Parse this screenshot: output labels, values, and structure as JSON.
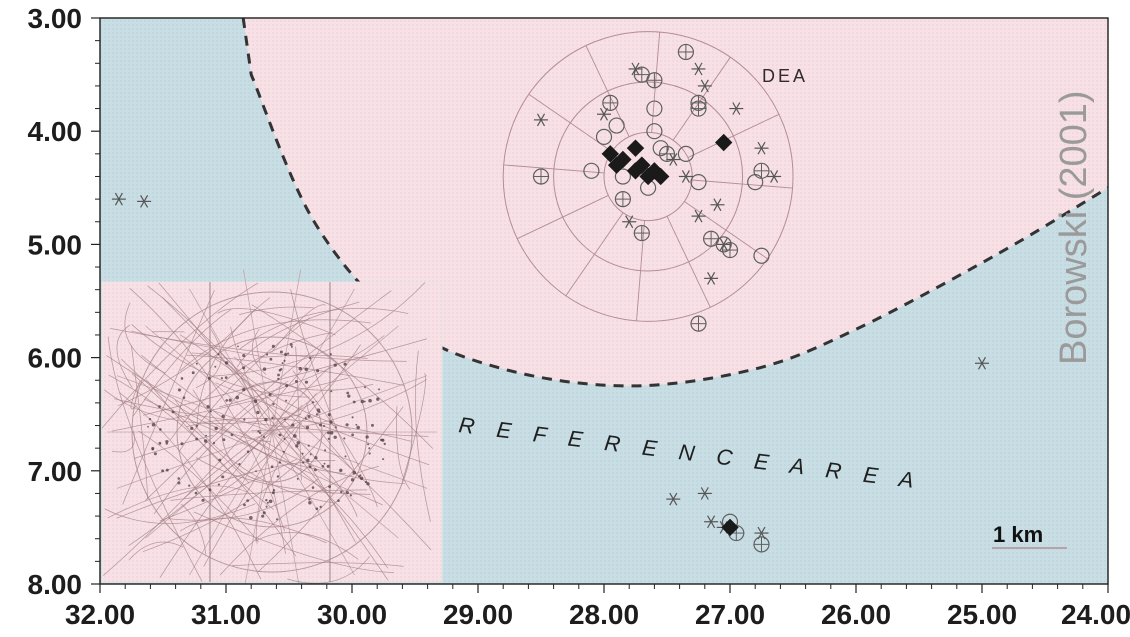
{
  "figure": {
    "dea_label": "DEA",
    "reference_area_label": "R E F E R E N C E   A R E A",
    "scale_bar_label": "1 km",
    "attribution": "Borowski (2001)"
  },
  "axes": {
    "x_ticks": [
      "32.00",
      "31.00",
      "30.00",
      "29.00",
      "28.00",
      "27.00",
      "26.00",
      "25.00",
      "24.00"
    ],
    "y_ticks": [
      "3.00",
      "4.00",
      "5.00",
      "6.00",
      "7.00",
      "8.00"
    ],
    "x_range": [
      32.0,
      24.0
    ],
    "y_range": [
      3.0,
      8.0
    ],
    "x_direction": "decreasing left to right",
    "y_direction": "increasing downward"
  },
  "colors": {
    "dea_fill": "#f7e1e6",
    "reference_fill": "#c9dde4",
    "grid_lines": "#b58a93",
    "markers": "#555555",
    "solid_markers": "#1a1a1a",
    "attribution_text": "#9a9a9a"
  },
  "map_data": {
    "boundary": {
      "style": "dashed",
      "description_points": [
        [
          30.8,
          3.5
        ],
        [
          30.3,
          4.8
        ],
        [
          29.6,
          5.7
        ],
        [
          28.8,
          6.1
        ],
        [
          27.8,
          6.25
        ],
        [
          26.8,
          6.1
        ],
        [
          26.0,
          5.75
        ],
        [
          24.9,
          5.1
        ],
        [
          24.0,
          4.5
        ]
      ]
    },
    "dea_sampling_grid": {
      "center": [
        27.65,
        4.4
      ],
      "ring_radii_km": [
        0.35,
        0.75,
        1.15
      ]
    },
    "symbol_sets": [
      {
        "symbol": "circle-cross",
        "points": [
          [
            27.95,
            3.75
          ],
          [
            27.7,
            3.5
          ],
          [
            27.6,
            3.55
          ],
          [
            27.25,
            3.8
          ],
          [
            27.25,
            3.75
          ],
          [
            28.5,
            4.4
          ],
          [
            27.5,
            4.2
          ],
          [
            26.75,
            4.35
          ],
          [
            27.0,
            5.05
          ],
          [
            27.15,
            4.95
          ],
          [
            27.85,
            4.6
          ],
          [
            27.7,
            4.9
          ],
          [
            27.25,
            5.7
          ],
          [
            26.75,
            7.65
          ],
          [
            26.95,
            7.55
          ],
          [
            27.35,
            3.3
          ]
        ]
      },
      {
        "symbol": "circle",
        "points": [
          [
            27.9,
            3.95
          ],
          [
            28.1,
            4.35
          ],
          [
            27.85,
            4.4
          ],
          [
            27.6,
            4.0
          ],
          [
            27.35,
            4.2
          ],
          [
            27.55,
            4.15
          ],
          [
            27.25,
            4.45
          ],
          [
            26.8,
            4.45
          ],
          [
            26.75,
            5.1
          ],
          [
            27.05,
            5.0
          ],
          [
            27.65,
            4.5
          ],
          [
            28.0,
            4.05
          ],
          [
            27.6,
            3.8
          ],
          [
            27.0,
            7.45
          ]
        ]
      },
      {
        "symbol": "asterisk",
        "points": [
          [
            31.85,
            4.6
          ],
          [
            31.65,
            4.62
          ],
          [
            27.75,
            3.45
          ],
          [
            27.25,
            3.45
          ],
          [
            28.0,
            3.85
          ],
          [
            28.5,
            3.9
          ],
          [
            27.2,
            3.6
          ],
          [
            26.95,
            3.8
          ],
          [
            26.75,
            4.15
          ],
          [
            26.65,
            4.4
          ],
          [
            27.15,
            5.3
          ],
          [
            27.25,
            4.75
          ],
          [
            27.8,
            4.8
          ],
          [
            27.35,
            4.4
          ],
          [
            27.45,
            4.25
          ],
          [
            27.05,
            5.0
          ],
          [
            27.1,
            4.65
          ],
          [
            25.0,
            6.05
          ],
          [
            27.45,
            7.25
          ],
          [
            27.2,
            7.2
          ],
          [
            27.15,
            7.45
          ],
          [
            26.75,
            7.55
          ],
          [
            27.05,
            7.5
          ]
        ]
      },
      {
        "symbol": "diamond",
        "points": [
          [
            27.95,
            4.2
          ],
          [
            27.9,
            4.3
          ],
          [
            27.85,
            4.25
          ],
          [
            27.75,
            4.35
          ],
          [
            27.7,
            4.3
          ],
          [
            27.65,
            4.4
          ],
          [
            27.6,
            4.35
          ],
          [
            27.55,
            4.4
          ],
          [
            27.75,
            4.15
          ],
          [
            27.05,
            4.1
          ],
          [
            27.0,
            7.5
          ]
        ]
      }
    ]
  }
}
